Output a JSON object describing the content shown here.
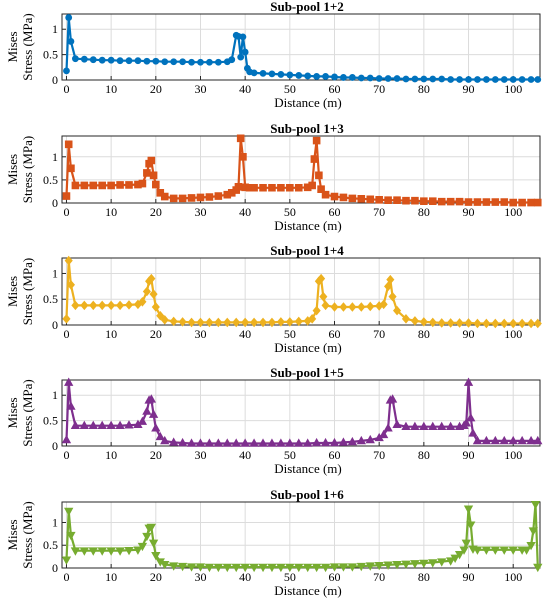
{
  "chart_data": [
    {
      "type": "line",
      "title": "Sub-pool 1+2",
      "xlabel": "Distance (m)",
      "ylabel": [
        "Mises",
        "Stress (MPa)"
      ],
      "xlim": [
        -1,
        106
      ],
      "ylim": [
        0,
        1.3
      ],
      "xticks": [
        "0",
        "10",
        "20",
        "30",
        "40",
        "50",
        "60",
        "70",
        "80",
        "90",
        "100"
      ],
      "yticks": [
        "0",
        "0.5",
        "1"
      ],
      "grid": true,
      "color": "#0072BD",
      "marker": "circle",
      "series": [
        {
          "x": [
            0,
            0.5,
            1,
            2,
            4,
            6,
            8,
            10,
            12,
            14,
            16,
            18,
            20,
            22,
            24,
            26,
            28,
            30,
            32,
            34,
            36,
            37,
            38,
            38.5,
            39,
            39.5,
            40,
            40.5,
            41,
            42,
            44,
            46,
            48,
            50,
            52,
            54,
            56,
            58,
            60,
            62,
            64,
            66,
            68,
            70,
            72,
            74,
            76,
            78,
            80,
            82,
            84,
            86,
            88,
            90,
            92,
            94,
            96,
            98,
            100,
            102,
            104,
            105.5
          ],
          "y": [
            0.18,
            1.23,
            0.76,
            0.42,
            0.41,
            0.4,
            0.39,
            0.39,
            0.38,
            0.38,
            0.38,
            0.37,
            0.37,
            0.36,
            0.36,
            0.36,
            0.35,
            0.35,
            0.35,
            0.35,
            0.36,
            0.4,
            0.88,
            0.86,
            0.45,
            0.85,
            0.55,
            0.23,
            0.16,
            0.14,
            0.13,
            0.12,
            0.11,
            0.1,
            0.09,
            0.08,
            0.07,
            0.07,
            0.06,
            0.05,
            0.05,
            0.04,
            0.04,
            0.03,
            0.03,
            0.03,
            0.02,
            0.02,
            0.02,
            0.02,
            0.02,
            0.01,
            0.01,
            0.01,
            0.01,
            0.01,
            0.01,
            0.01,
            0.01,
            0.01,
            0.01,
            0.01
          ]
        }
      ]
    },
    {
      "type": "line",
      "title": "Sub-pool 1+3",
      "xlabel": "Distance (m)",
      "ylabel": [
        "Mises",
        "Stress (MPa)"
      ],
      "xlim": [
        -1,
        106
      ],
      "ylim": [
        0,
        1.45
      ],
      "xticks": [
        "0",
        "10",
        "20",
        "30",
        "40",
        "50",
        "60",
        "70",
        "80",
        "90",
        "100"
      ],
      "yticks": [
        "0",
        "0.5",
        "1"
      ],
      "grid": true,
      "color": "#D95319",
      "marker": "square",
      "series": [
        {
          "x": [
            0,
            0.5,
            1,
            2,
            4,
            6,
            8,
            10,
            12,
            14,
            16,
            17,
            18,
            18.5,
            19,
            19.5,
            20,
            21,
            22,
            24,
            26,
            28,
            30,
            32,
            34,
            36,
            37,
            38,
            38.5,
            39,
            39.5,
            40,
            41,
            42,
            44,
            46,
            48,
            50,
            52,
            54,
            55,
            55.5,
            56,
            56.5,
            57,
            58,
            60,
            62,
            64,
            66,
            68,
            70,
            72,
            74,
            76,
            78,
            80,
            82,
            84,
            86,
            88,
            90,
            92,
            94,
            96,
            98,
            100,
            102,
            104,
            105.5
          ],
          "y": [
            0.15,
            1.27,
            0.75,
            0.38,
            0.38,
            0.38,
            0.38,
            0.38,
            0.39,
            0.39,
            0.4,
            0.42,
            0.65,
            0.85,
            0.92,
            0.6,
            0.4,
            0.22,
            0.14,
            0.1,
            0.1,
            0.11,
            0.12,
            0.13,
            0.15,
            0.18,
            0.22,
            0.28,
            0.35,
            1.4,
            1.0,
            0.34,
            0.33,
            0.33,
            0.33,
            0.33,
            0.33,
            0.33,
            0.33,
            0.34,
            0.38,
            0.95,
            1.35,
            0.6,
            0.3,
            0.18,
            0.14,
            0.12,
            0.1,
            0.09,
            0.08,
            0.07,
            0.06,
            0.06,
            0.05,
            0.05,
            0.04,
            0.04,
            0.03,
            0.03,
            0.03,
            0.02,
            0.02,
            0.02,
            0.02,
            0.02,
            0.01,
            0.01,
            0.01,
            0.01
          ]
        }
      ]
    },
    {
      "type": "line",
      "title": "Sub-pool 1+4",
      "xlabel": "Distance (m)",
      "ylabel": [
        "Mises",
        "Stress (MPa)"
      ],
      "xlim": [
        -1,
        106
      ],
      "ylim": [
        0,
        1.3
      ],
      "xticks": [
        "0",
        "10",
        "20",
        "30",
        "40",
        "50",
        "60",
        "70",
        "80",
        "90",
        "100"
      ],
      "yticks": [
        "0",
        "0.5",
        "1"
      ],
      "grid": true,
      "color": "#EDB120",
      "marker": "diamond",
      "series": [
        {
          "x": [
            0,
            0.5,
            1,
            2,
            4,
            6,
            8,
            10,
            12,
            14,
            16,
            17,
            18,
            18.5,
            19,
            19.5,
            20,
            21,
            22,
            24,
            26,
            28,
            30,
            32,
            34,
            36,
            38,
            40,
            42,
            44,
            46,
            48,
            50,
            52,
            54,
            55,
            56,
            56.5,
            57,
            57.5,
            58,
            60,
            62,
            64,
            66,
            68,
            70,
            71,
            72,
            72.5,
            73,
            74,
            76,
            78,
            80,
            82,
            84,
            86,
            88,
            90,
            92,
            94,
            96,
            98,
            100,
            102,
            104,
            105.5
          ],
          "y": [
            0.12,
            1.25,
            0.78,
            0.38,
            0.38,
            0.38,
            0.38,
            0.38,
            0.38,
            0.39,
            0.4,
            0.45,
            0.65,
            0.85,
            0.9,
            0.6,
            0.35,
            0.18,
            0.1,
            0.07,
            0.06,
            0.05,
            0.05,
            0.05,
            0.05,
            0.05,
            0.05,
            0.05,
            0.05,
            0.05,
            0.05,
            0.06,
            0.06,
            0.07,
            0.08,
            0.12,
            0.28,
            0.85,
            0.9,
            0.55,
            0.38,
            0.35,
            0.35,
            0.35,
            0.35,
            0.36,
            0.37,
            0.4,
            0.75,
            0.88,
            0.55,
            0.28,
            0.12,
            0.08,
            0.06,
            0.05,
            0.04,
            0.04,
            0.04,
            0.04,
            0.03,
            0.03,
            0.03,
            0.03,
            0.03,
            0.03,
            0.03,
            0.03
          ]
        }
      ]
    },
    {
      "type": "line",
      "title": "Sub-pool 1+5",
      "xlabel": "Distance (m)",
      "ylabel": [
        "Mises",
        "Stress (MPa)"
      ],
      "xlim": [
        -1,
        106
      ],
      "ylim": [
        0,
        1.3
      ],
      "xticks": [
        "0",
        "10",
        "20",
        "30",
        "40",
        "50",
        "60",
        "70",
        "80",
        "90",
        "100"
      ],
      "yticks": [
        "0",
        "0.5",
        "1"
      ],
      "grid": true,
      "color": "#7E2F8E",
      "marker": "triangle-up",
      "series": [
        {
          "x": [
            0,
            0.5,
            1,
            2,
            4,
            6,
            8,
            10,
            12,
            14,
            16,
            17,
            18,
            18.5,
            19,
            19.5,
            20,
            21,
            22,
            24,
            26,
            28,
            30,
            32,
            34,
            36,
            38,
            40,
            42,
            44,
            46,
            48,
            50,
            52,
            54,
            56,
            58,
            60,
            62,
            64,
            66,
            68,
            70,
            71,
            72,
            72.5,
            73,
            74,
            76,
            78,
            80,
            82,
            84,
            86,
            88,
            89,
            89.5,
            90,
            90.5,
            91,
            92,
            94,
            96,
            98,
            100,
            102,
            104,
            105.5
          ],
          "y": [
            0.12,
            1.25,
            0.78,
            0.4,
            0.4,
            0.4,
            0.4,
            0.4,
            0.4,
            0.41,
            0.42,
            0.48,
            0.68,
            0.9,
            0.92,
            0.62,
            0.35,
            0.18,
            0.1,
            0.07,
            0.06,
            0.05,
            0.05,
            0.05,
            0.05,
            0.05,
            0.05,
            0.05,
            0.05,
            0.05,
            0.05,
            0.05,
            0.05,
            0.05,
            0.05,
            0.06,
            0.06,
            0.06,
            0.07,
            0.08,
            0.1,
            0.12,
            0.16,
            0.22,
            0.35,
            0.9,
            0.92,
            0.42,
            0.38,
            0.38,
            0.38,
            0.38,
            0.38,
            0.38,
            0.38,
            0.4,
            0.45,
            1.25,
            0.55,
            0.25,
            0.1,
            0.1,
            0.1,
            0.1,
            0.1,
            0.1,
            0.1,
            0.1
          ]
        }
      ]
    },
    {
      "type": "line",
      "title": "Sub-pool 1+6",
      "xlabel": "Distance (m)",
      "ylabel": [
        "Mises",
        "Stress (MPa)"
      ],
      "xlim": [
        -1,
        106
      ],
      "ylim": [
        0,
        1.45
      ],
      "xticks": [
        "0",
        "10",
        "20",
        "30",
        "40",
        "50",
        "60",
        "70",
        "80",
        "90",
        "100"
      ],
      "yticks": [
        "0",
        "0.5",
        "1"
      ],
      "grid": true,
      "color": "#77AC30",
      "marker": "triangle-down",
      "series": [
        {
          "x": [
            0,
            0.5,
            1,
            2,
            4,
            6,
            8,
            10,
            12,
            14,
            16,
            17,
            18,
            18.5,
            19,
            19.5,
            20,
            21,
            22,
            24,
            26,
            28,
            30,
            32,
            34,
            36,
            38,
            40,
            42,
            44,
            46,
            48,
            50,
            52,
            54,
            56,
            58,
            60,
            62,
            64,
            66,
            68,
            70,
            72,
            74,
            76,
            78,
            80,
            82,
            84,
            86,
            87,
            88,
            89,
            89.5,
            90,
            90.5,
            91,
            92,
            94,
            96,
            98,
            100,
            102,
            103,
            104,
            104.5,
            105,
            105.5
          ],
          "y": [
            0.18,
            1.25,
            0.72,
            0.38,
            0.38,
            0.38,
            0.38,
            0.38,
            0.38,
            0.39,
            0.4,
            0.48,
            0.7,
            0.88,
            0.9,
            0.55,
            0.28,
            0.14,
            0.08,
            0.05,
            0.04,
            0.03,
            0.03,
            0.02,
            0.02,
            0.02,
            0.02,
            0.02,
            0.02,
            0.02,
            0.02,
            0.02,
            0.02,
            0.02,
            0.02,
            0.02,
            0.02,
            0.03,
            0.03,
            0.03,
            0.04,
            0.05,
            0.06,
            0.07,
            0.08,
            0.09,
            0.1,
            0.11,
            0.12,
            0.14,
            0.16,
            0.22,
            0.3,
            0.4,
            0.55,
            1.3,
            0.95,
            0.42,
            0.4,
            0.4,
            0.4,
            0.4,
            0.4,
            0.4,
            0.4,
            0.5,
            0.82,
            1.4,
            0.02
          ]
        }
      ]
    }
  ]
}
